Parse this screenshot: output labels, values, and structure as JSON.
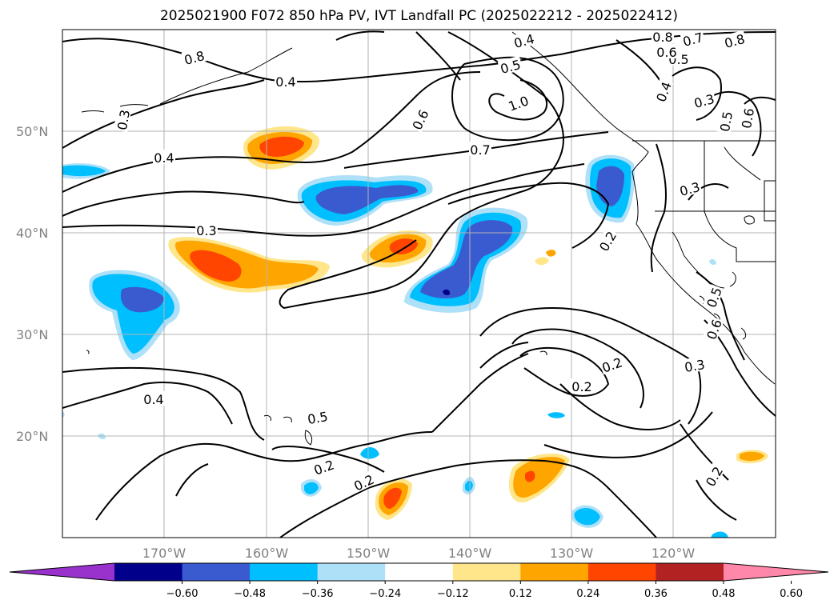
{
  "title": "2025021900 F072 850 hPa PV, IVT Landfall PC (2025022212 - 2025022412)",
  "map": {
    "lat_labels": [
      "50°N",
      "40°N",
      "30°N",
      "20°N"
    ],
    "lon_labels": [
      "170°W",
      "160°W",
      "150°W",
      "140°W",
      "130°W",
      "120°W"
    ],
    "contour_labels": [
      "0.4",
      "0.8",
      "0.7",
      "0.8",
      "0.5",
      "0.6",
      "0.5",
      "0.8",
      "1.0",
      "0.4",
      "0.3",
      "0.5",
      "0.6",
      "0.3",
      "0.4",
      "0.6",
      "0.7",
      "0.4",
      "0.3",
      "0.3",
      "0.2",
      "0.4",
      "0.5",
      "0.5",
      "0.6",
      "0.2",
      "0.3",
      "0.2",
      "0.2",
      "0.2",
      "0.2"
    ]
  },
  "colorbar": {
    "tick_labels": [
      "−0.60",
      "−0.48",
      "−0.36",
      "−0.24",
      "−0.12",
      "0.12",
      "0.24",
      "0.36",
      "0.48",
      "0.60"
    ],
    "colors": [
      "#9932cc",
      "#00008b",
      "#3a5bd0",
      "#00bfff",
      "#aee0f8",
      "#ffffff",
      "#ffe68a",
      "#ffa500",
      "#ff4500",
      "#b22222",
      "#ff88aa"
    ]
  }
}
